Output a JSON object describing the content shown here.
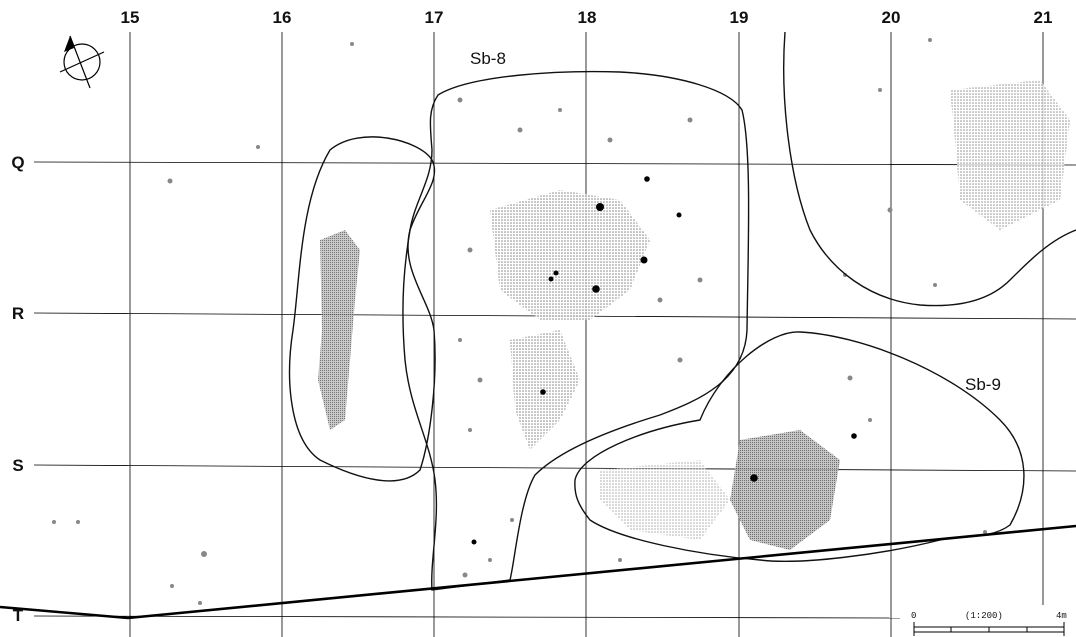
{
  "columns": [
    "15",
    "16",
    "17",
    "18",
    "19",
    "20",
    "21"
  ],
  "rows": [
    "Q",
    "R",
    "S",
    "T"
  ],
  "sites": [
    "Sb-8",
    "Sb-9"
  ],
  "scale": {
    "start": "0",
    "ratio": "(1:200)",
    "end": "4m"
  },
  "north_arrow": "north-arrow-icon",
  "colors": {
    "ink": "#111111",
    "stipple": "#8a8a8a",
    "paper": "#ffffff"
  }
}
